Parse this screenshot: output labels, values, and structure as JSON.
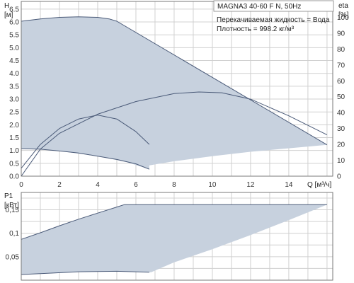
{
  "chart_data": [
    {
      "type": "line",
      "title": "MAGNA3 40-60 F N, 50Hz",
      "info_lines": [
        "Перекачиваемая жидкость = Вода",
        "Плотность = 998.2 кг/м³"
      ],
      "xlabel": "Q [м³/ч]",
      "ylabel_name": "H",
      "ylabel_unit": "[м]",
      "y2label_name": "eta",
      "y2label_unit": "[%]",
      "xlim": [
        0,
        16.3
      ],
      "ylim": [
        0,
        6.8
      ],
      "y2lim": [
        0,
        110
      ],
      "x_ticks": [
        0,
        2,
        4,
        6,
        8,
        10,
        12,
        14
      ],
      "y_ticks": [
        "0.0",
        "0.5",
        "1.0",
        "1.5",
        "2.0",
        "2.5",
        "3.0",
        "3.5",
        "4.0",
        "4.5",
        "5.0",
        "5.5",
        "6.0",
        "6.5"
      ],
      "y2_ticks": [
        0,
        10,
        20,
        30,
        40,
        50,
        60,
        70,
        80,
        90,
        100
      ],
      "grid": true,
      "area": {
        "upper": [
          [
            0,
            6.03
          ],
          [
            1,
            6.12
          ],
          [
            2,
            6.18
          ],
          [
            3,
            6.2
          ],
          [
            4,
            6.18
          ],
          [
            4.6,
            6.12
          ],
          [
            5.0,
            6.03
          ],
          [
            16.0,
            1.22
          ]
        ],
        "lower": [
          [
            16.0,
            1.22
          ],
          [
            12,
            0.95
          ],
          [
            10,
            0.78
          ],
          [
            8,
            0.58
          ],
          [
            6.7,
            0.42
          ],
          [
            6.7,
            0.27
          ],
          [
            5.5,
            0.55
          ],
          [
            4,
            0.78
          ],
          [
            2,
            0.98
          ],
          [
            1,
            1.05
          ],
          [
            0,
            1.07
          ]
        ]
      },
      "series": [
        {
          "values": [
            [
              0,
              6.03
            ],
            [
              1,
              6.12
            ],
            [
              2,
              6.18
            ],
            [
              3,
              6.2
            ],
            [
              4,
              6.18
            ],
            [
              4.6,
              6.12
            ],
            [
              5.0,
              6.03
            ],
            [
              16.0,
              1.22
            ]
          ]
        },
        {
          "values": [
            [
              0,
              1.07
            ],
            [
              1,
              1.05
            ],
            [
              2,
              0.98
            ],
            [
              3,
              0.9
            ],
            [
              4,
              0.78
            ],
            [
              5,
              0.65
            ],
            [
              6,
              0.48
            ],
            [
              6.7,
              0.27
            ]
          ]
        },
        {
          "axis": "y2",
          "values": [
            [
              0,
              5
            ],
            [
              1,
              20
            ],
            [
              2,
              30
            ],
            [
              3,
              36
            ],
            [
              4,
              38.5
            ],
            [
              5,
              36
            ],
            [
              6,
              28
            ],
            [
              6.7,
              20
            ]
          ]
        },
        {
          "axis": "y2",
          "values": [
            [
              0,
              0
            ],
            [
              1,
              17
            ],
            [
              2,
              27
            ],
            [
              4,
              39
            ],
            [
              6,
              47
            ],
            [
              8,
              52
            ],
            [
              9.3,
              53
            ],
            [
              10.5,
              52.5
            ],
            [
              12,
              48.5
            ],
            [
              14,
              38
            ],
            [
              16,
              26
            ]
          ]
        }
      ]
    },
    {
      "type": "line",
      "ylabel_name": "P1",
      "ylabel_unit": "[кВт]",
      "xlim": [
        0,
        16.3
      ],
      "ylim": [
        0,
        0.187
      ],
      "y_ticks": [
        "0,05",
        "0,1",
        "0,15"
      ],
      "y_tick_values": [
        0.05,
        0.1,
        0.15
      ],
      "grid": true,
      "area": {
        "upper": [
          [
            0,
            0.087
          ],
          [
            1,
            0.101
          ],
          [
            2,
            0.116
          ],
          [
            3,
            0.13
          ],
          [
            4,
            0.143
          ],
          [
            5,
            0.156
          ],
          [
            5.4,
            0.161
          ],
          [
            16.0,
            0.161
          ]
        ],
        "lower": [
          [
            16.0,
            0.161
          ],
          [
            14,
            0.128
          ],
          [
            12,
            0.096
          ],
          [
            10,
            0.066
          ],
          [
            8,
            0.038
          ],
          [
            6.8,
            0.017
          ],
          [
            6.7,
            0.017
          ],
          [
            5,
            0.019
          ],
          [
            3,
            0.018
          ],
          [
            1,
            0.014
          ],
          [
            0,
            0.012
          ]
        ]
      },
      "series": [
        {
          "values": [
            [
              0,
              0.087
            ],
            [
              1,
              0.101
            ],
            [
              2,
              0.116
            ],
            [
              3,
              0.13
            ],
            [
              4,
              0.143
            ],
            [
              5,
              0.156
            ],
            [
              5.4,
              0.161
            ],
            [
              16.0,
              0.161
            ]
          ]
        },
        {
          "values": [
            [
              0,
              0.012
            ],
            [
              1,
              0.014
            ],
            [
              3,
              0.018
            ],
            [
              5,
              0.019
            ],
            [
              6.7,
              0.017
            ]
          ]
        }
      ]
    }
  ],
  "colors": {
    "area_fill": "#c7d1de",
    "curve": "#4a5a78",
    "grid": "#d0d0d0",
    "axis": "#7a7a7a"
  }
}
